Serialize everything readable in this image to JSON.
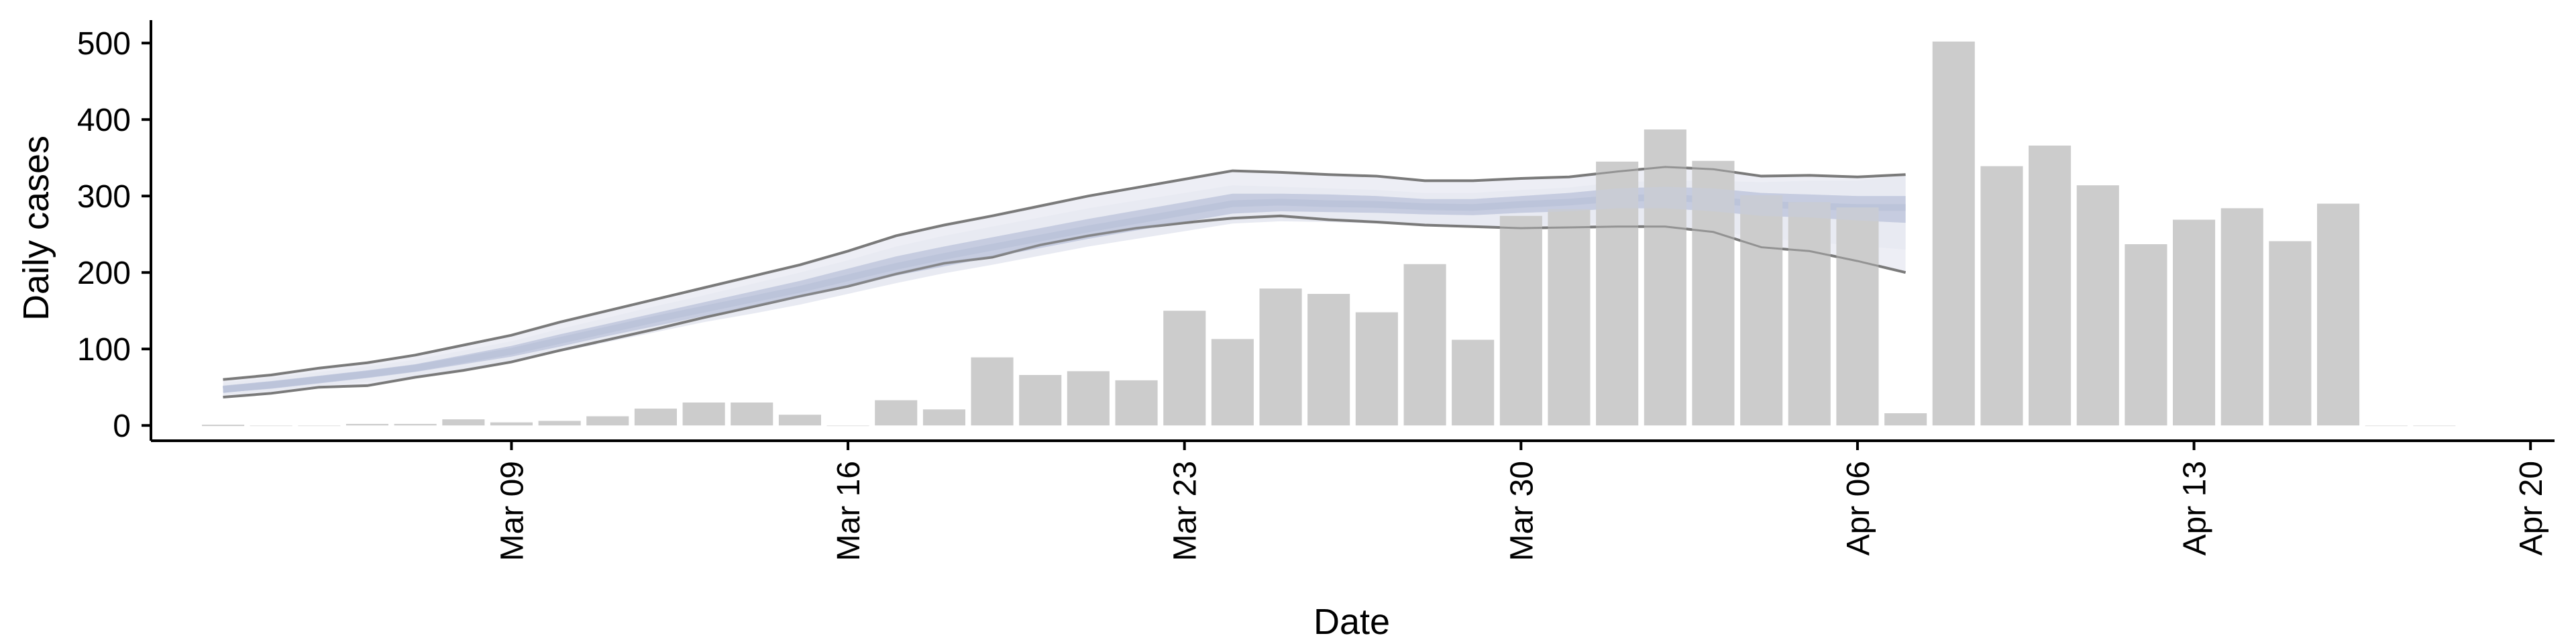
{
  "chart_data": {
    "type": "bar",
    "xlabel": "Date",
    "ylabel": "Daily cases",
    "x_ticks": [
      "Mar 09",
      "Mar 16",
      "Mar 23",
      "Mar 30",
      "Apr 06",
      "Apr 13",
      "Apr 20"
    ],
    "y_ticks": [
      "0",
      "100",
      "200",
      "300",
      "400",
      "500"
    ],
    "xlim": [
      "2020-03-01T12:00",
      "2020-04-20T12:00"
    ],
    "ylim": [
      -20,
      530
    ],
    "grid": false,
    "legend": "none",
    "colors": {
      "bars": "#cccccc",
      "band_outer": "#e8eaf2",
      "band_inner": "#c6cde0",
      "bound_lines": "#7a7a7a"
    },
    "bars": {
      "dates": [
        "2020-03-03",
        "2020-03-04",
        "2020-03-05",
        "2020-03-06",
        "2020-03-07",
        "2020-03-08",
        "2020-03-09",
        "2020-03-10",
        "2020-03-11",
        "2020-03-12",
        "2020-03-13",
        "2020-03-14",
        "2020-03-15",
        "2020-03-16",
        "2020-03-17",
        "2020-03-18",
        "2020-03-19",
        "2020-03-20",
        "2020-03-21",
        "2020-03-22",
        "2020-03-23",
        "2020-03-24",
        "2020-03-25",
        "2020-03-26",
        "2020-03-27",
        "2020-03-28",
        "2020-03-29",
        "2020-03-30",
        "2020-03-31",
        "2020-04-01",
        "2020-04-02",
        "2020-04-03",
        "2020-04-04",
        "2020-04-05",
        "2020-04-06",
        "2020-04-07",
        "2020-04-08",
        "2020-04-09",
        "2020-04-10",
        "2020-04-11",
        "2020-04-12",
        "2020-04-13",
        "2020-04-14",
        "2020-04-15",
        "2020-04-16",
        "2020-04-17",
        "2020-04-18"
      ],
      "values": [
        1,
        0,
        0,
        2,
        2,
        8,
        4,
        6,
        12,
        22,
        30,
        30,
        14,
        0,
        33,
        21,
        89,
        66,
        71,
        59,
        150,
        113,
        179,
        172,
        148,
        211,
        112,
        274,
        283,
        345,
        387,
        346,
        301,
        292,
        285,
        16,
        502,
        339,
        366,
        314,
        237,
        269,
        284,
        241,
        290,
        0,
        0
      ]
    },
    "forecast": {
      "dates": [
        "2020-03-03",
        "2020-03-04",
        "2020-03-05",
        "2020-03-06",
        "2020-03-07",
        "2020-03-08",
        "2020-03-09",
        "2020-03-10",
        "2020-03-11",
        "2020-03-12",
        "2020-03-13",
        "2020-03-14",
        "2020-03-15",
        "2020-03-16",
        "2020-03-17",
        "2020-03-18",
        "2020-03-19",
        "2020-03-20",
        "2020-03-21",
        "2020-03-22",
        "2020-03-23",
        "2020-03-24",
        "2020-03-25",
        "2020-03-26",
        "2020-03-27",
        "2020-03-28",
        "2020-03-29",
        "2020-03-30",
        "2020-03-31",
        "2020-04-01",
        "2020-04-02",
        "2020-04-03",
        "2020-04-04",
        "2020-04-05",
        "2020-04-06",
        "2020-04-07",
        "2020-04-08",
        "2020-04-09"
      ],
      "upper": [
        60,
        66,
        75,
        82,
        92,
        105,
        118,
        135,
        150,
        165,
        180,
        195,
        210,
        228,
        248,
        262,
        274,
        287,
        300,
        311,
        322,
        333,
        331,
        328,
        326,
        320,
        320,
        323,
        325,
        332,
        338,
        335,
        326,
        327,
        325,
        328,
        null,
        null
      ],
      "outer_upper": [
        56,
        62,
        70,
        77,
        86,
        98,
        110,
        126,
        141,
        156,
        170,
        185,
        200,
        216,
        234,
        248,
        260,
        272,
        284,
        294,
        304,
        314,
        312,
        310,
        308,
        304,
        304,
        308,
        311,
        318,
        320,
        320,
        318,
        320,
        320,
        326,
        null,
        null
      ],
      "inner_upper": [
        52,
        58,
        65,
        72,
        80,
        92,
        104,
        119,
        133,
        147,
        161,
        175,
        189,
        205,
        221,
        234,
        246,
        258,
        270,
        281,
        292,
        303,
        303,
        302,
        300,
        296,
        296,
        300,
        304,
        310,
        312,
        310,
        304,
        302,
        300,
        300,
        null,
        null
      ],
      "center": [
        47,
        53,
        60,
        67,
        75,
        86,
        97,
        111,
        125,
        139,
        152,
        165,
        178,
        193,
        208,
        221,
        233,
        245,
        257,
        268,
        279,
        290,
        292,
        290,
        289,
        286,
        285,
        289,
        292,
        297,
        298,
        295,
        289,
        287,
        285,
        285,
        null,
        null
      ],
      "inner_lower": [
        43,
        48,
        55,
        62,
        70,
        80,
        90,
        103,
        117,
        130,
        143,
        155,
        167,
        181,
        196,
        208,
        220,
        232,
        244,
        255,
        266,
        277,
        280,
        279,
        278,
        276,
        275,
        278,
        280,
        284,
        284,
        280,
        274,
        272,
        268,
        265,
        null,
        null
      ],
      "outer_lower": [
        40,
        45,
        52,
        57,
        64,
        74,
        84,
        96,
        109,
        122,
        135,
        146,
        158,
        172,
        186,
        199,
        210,
        222,
        234,
        244,
        254,
        264,
        267,
        266,
        264,
        262,
        260,
        262,
        263,
        265,
        262,
        255,
        245,
        240,
        235,
        230,
        null,
        null
      ],
      "lower": [
        37,
        42,
        50,
        52,
        63,
        72,
        83,
        98,
        112,
        126,
        141,
        155,
        169,
        182,
        198,
        212,
        220,
        236,
        248,
        258,
        265,
        271,
        274,
        269,
        266,
        262,
        260,
        258,
        259,
        260,
        260,
        253,
        233,
        228,
        215,
        200,
        null,
        null
      ]
    }
  }
}
